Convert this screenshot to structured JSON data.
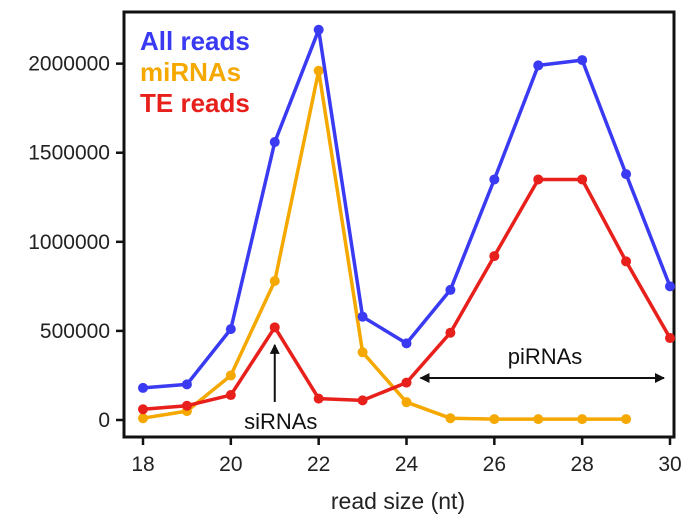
{
  "chart_data": {
    "type": "line",
    "title": "",
    "xlabel": "read size (nt)",
    "ylabel": "",
    "xlim": [
      18,
      30
    ],
    "ylim": [
      -50000,
      2250000
    ],
    "x_ticks": [
      18,
      20,
      22,
      24,
      26,
      28,
      30
    ],
    "y_ticks": [
      0,
      500000,
      1000000,
      1500000,
      2000000
    ],
    "x_tick_labels": [
      "18",
      "20",
      "22",
      "24",
      "26",
      "28",
      "30"
    ],
    "y_tick_labels": [
      "0",
      "500000",
      "1000000",
      "1500000",
      "2000000"
    ],
    "legend_position": "top-left",
    "series": [
      {
        "name": "All reads",
        "color": "#3a3af2",
        "x": [
          18,
          19,
          20,
          21,
          22,
          23,
          24,
          25,
          26,
          27,
          28,
          29,
          30
        ],
        "values": [
          180000,
          200000,
          510000,
          1560000,
          2190000,
          580000,
          430000,
          730000,
          1350000,
          1990000,
          2020000,
          1380000,
          750000
        ]
      },
      {
        "name": "miRNAs",
        "color": "#f5a800",
        "x": [
          18,
          19,
          20,
          21,
          22,
          23,
          24,
          25,
          26,
          27,
          28,
          29
        ],
        "values": [
          10000,
          50000,
          250000,
          780000,
          1960000,
          380000,
          100000,
          10000,
          5000,
          5000,
          5000,
          5000
        ]
      },
      {
        "name": "TE reads",
        "color": "#e8201c",
        "x": [
          18,
          19,
          20,
          21,
          22,
          23,
          24,
          25,
          26,
          27,
          28,
          29,
          30
        ],
        "values": [
          60000,
          80000,
          140000,
          520000,
          120000,
          110000,
          210000,
          490000,
          920000,
          1350000,
          1350000,
          890000,
          460000
        ]
      }
    ],
    "annotations": [
      {
        "text": "siRNAs",
        "arrow_to": {
          "x": 21,
          "y": 500000
        }
      },
      {
        "text": "piRNAs",
        "span": [
          24.5,
          30
        ],
        "y": 360000
      }
    ]
  }
}
